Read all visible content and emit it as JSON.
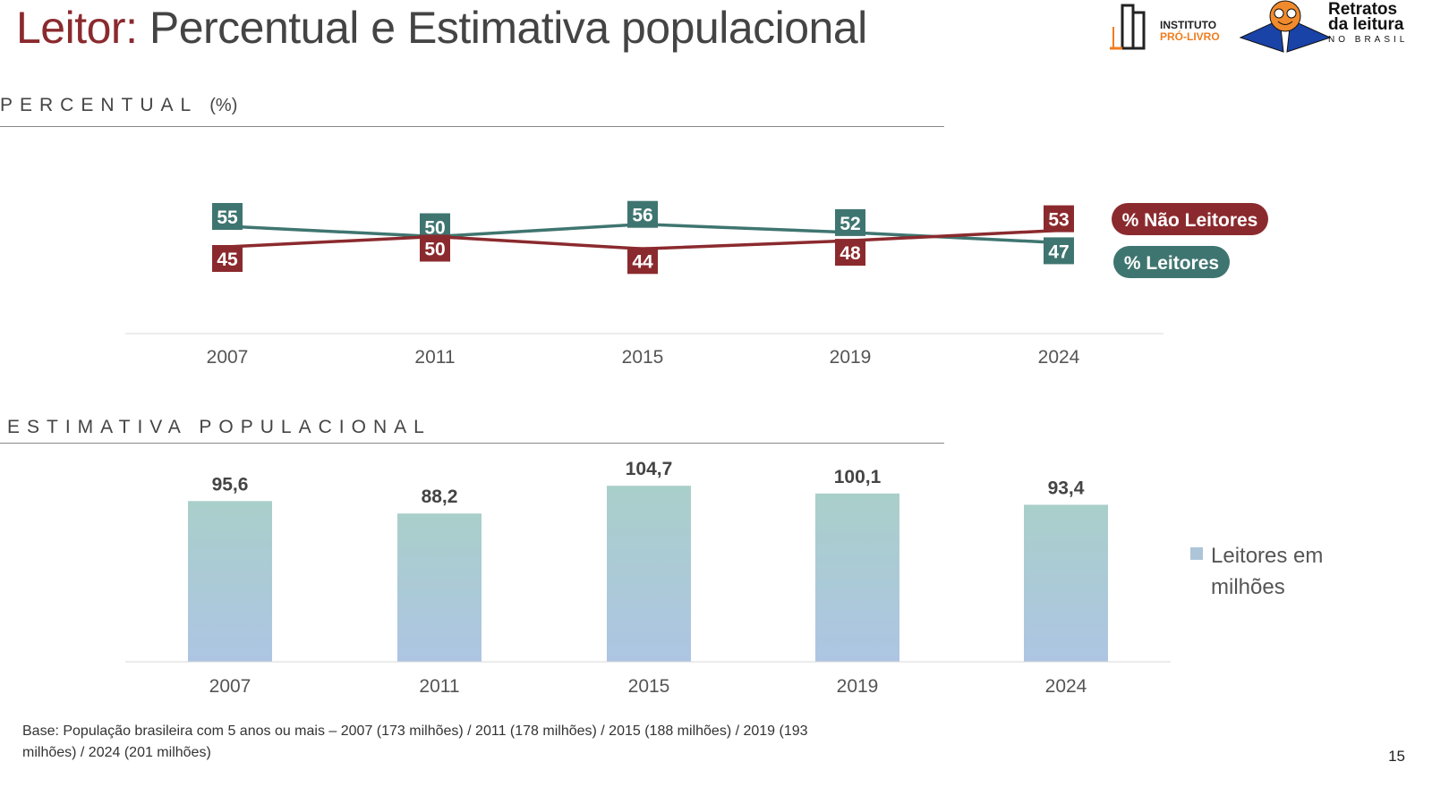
{
  "header": {
    "title_accent": "Leitor:",
    "title_rest": " Percentual e Estimativa populacional"
  },
  "logos": {
    "instituto_line1": "INSTITUTO",
    "instituto_line2": "PRÓ-LIVRO",
    "retratos_line1": "Retratos",
    "retratos_line2": "da leitura",
    "retratos_line3": "NO BRASIL"
  },
  "sections": {
    "percentual": "PERCENTUAL",
    "percentual_unit": "(%)",
    "estimativa": "ESTIMATIVA POPULACIONAL"
  },
  "colors": {
    "leitores": "#3f7570",
    "nao_leitores": "#8b2a2e",
    "bar_top": "#a9cfca",
    "bar_bottom": "#adc5e3"
  },
  "chart_data": [
    {
      "type": "line",
      "categories": [
        "2007",
        "2011",
        "2015",
        "2019",
        "2024"
      ],
      "series": [
        {
          "name": "% Leitores",
          "values": [
            55,
            50,
            56,
            52,
            47
          ]
        },
        {
          "name": "% Não Leitores",
          "values": [
            45,
            50,
            44,
            48,
            53
          ]
        }
      ],
      "legend": "right"
    },
    {
      "type": "bar",
      "categories": [
        "2007",
        "2011",
        "2015",
        "2019",
        "2024"
      ],
      "series": [
        {
          "name": "Leitores em milhões",
          "values": [
            95.6,
            88.2,
            104.7,
            100.1,
            93.4
          ]
        }
      ],
      "data_labels": [
        "95,6",
        "88,2",
        "104,7",
        "100,1",
        "93,4"
      ],
      "legend": "right"
    }
  ],
  "footer": {
    "base": "Base: População brasileira com 5 anos ou mais – 2007 (173 milhões) / 2011 (178 milhões) / 2015 (188 milhões) / 2019 (193 milhões) / 2024 (201 milhões)",
    "page": "15"
  }
}
